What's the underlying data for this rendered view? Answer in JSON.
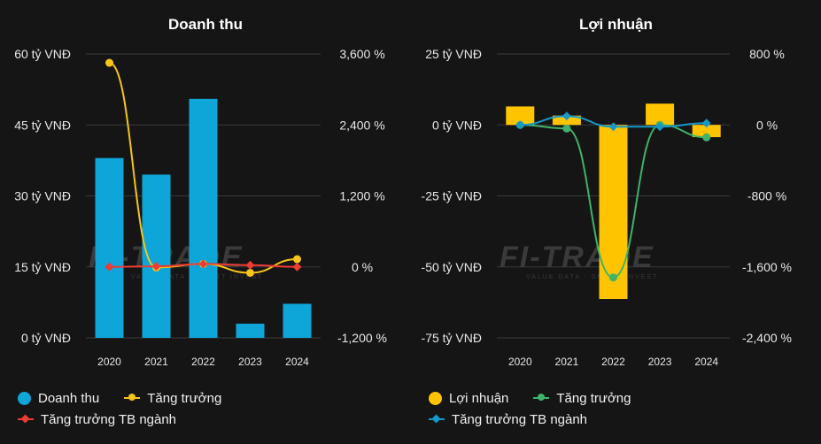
{
  "colors": {
    "revenue_bar": "#0ea5d8",
    "growth_left": "#f5c518",
    "industry_left": "#ee3b34",
    "profit_bar": "#ffc400",
    "growth_right": "#3fb36a",
    "industry_right": "#1597c7"
  },
  "watermark": {
    "text": "FI-TRADE",
    "sub": "VALUE DATA - SMART INVEST"
  },
  "chart_data": [
    {
      "type": "bar",
      "title": "Doanh thu",
      "categories": [
        "2020",
        "2021",
        "2022",
        "2023",
        "2024"
      ],
      "y_left": {
        "ticks": [
          "0 tỷ VNĐ",
          "15 tỷ VNĐ",
          "30 tỷ VNĐ",
          "45 tỷ VNĐ",
          "60 tỷ VNĐ"
        ],
        "range": [
          0,
          60
        ]
      },
      "y_right": {
        "ticks": [
          "-1,200 %",
          "0 %",
          "1,200 %",
          "2,400 %",
          "3,600 %"
        ],
        "range": [
          -1200,
          3600
        ]
      },
      "series": [
        {
          "name": "Doanh thu",
          "kind": "bar",
          "axis": "left",
          "values": [
            38,
            34.5,
            50.5,
            3,
            7.2
          ]
        },
        {
          "name": "Tăng trưởng",
          "kind": "line",
          "axis": "right",
          "marker": "circle",
          "values": [
            3450,
            -10,
            50,
            -100,
            130
          ]
        },
        {
          "name": "Tăng trưởng TB ngành",
          "kind": "line",
          "axis": "right",
          "marker": "diamond",
          "values": [
            0,
            10,
            50,
            30,
            0
          ]
        }
      ],
      "legend_position": "bottom-left"
    },
    {
      "type": "bar",
      "title": "Lợi nhuận",
      "categories": [
        "2020",
        "2021",
        "2022",
        "2023",
        "2024"
      ],
      "y_left": {
        "ticks": [
          "-75 tỷ VNĐ",
          "-50 tỷ VNĐ",
          "-25 tỷ VNĐ",
          "0 tỷ VNĐ",
          "25 tỷ VNĐ"
        ],
        "range": [
          -75,
          25
        ]
      },
      "y_right": {
        "ticks": [
          "-2,400 %",
          "-1,600 %",
          "-800 %",
          "0 %",
          "800 %"
        ],
        "range": [
          -2400,
          800
        ]
      },
      "series": [
        {
          "name": "Lợi nhuận",
          "kind": "bar",
          "axis": "left",
          "values": [
            6.5,
            3.3,
            -61.3,
            7.5,
            -4.3
          ]
        },
        {
          "name": "Tăng trưởng",
          "kind": "line",
          "axis": "right",
          "marker": "circle",
          "values": [
            0,
            -40,
            -1720,
            0,
            -140
          ]
        },
        {
          "name": "Tăng trưởng TB ngành",
          "kind": "line",
          "axis": "right",
          "marker": "diamond",
          "values": [
            0,
            100,
            -20,
            -20,
            20
          ]
        }
      ],
      "legend_position": "bottom-left"
    }
  ]
}
